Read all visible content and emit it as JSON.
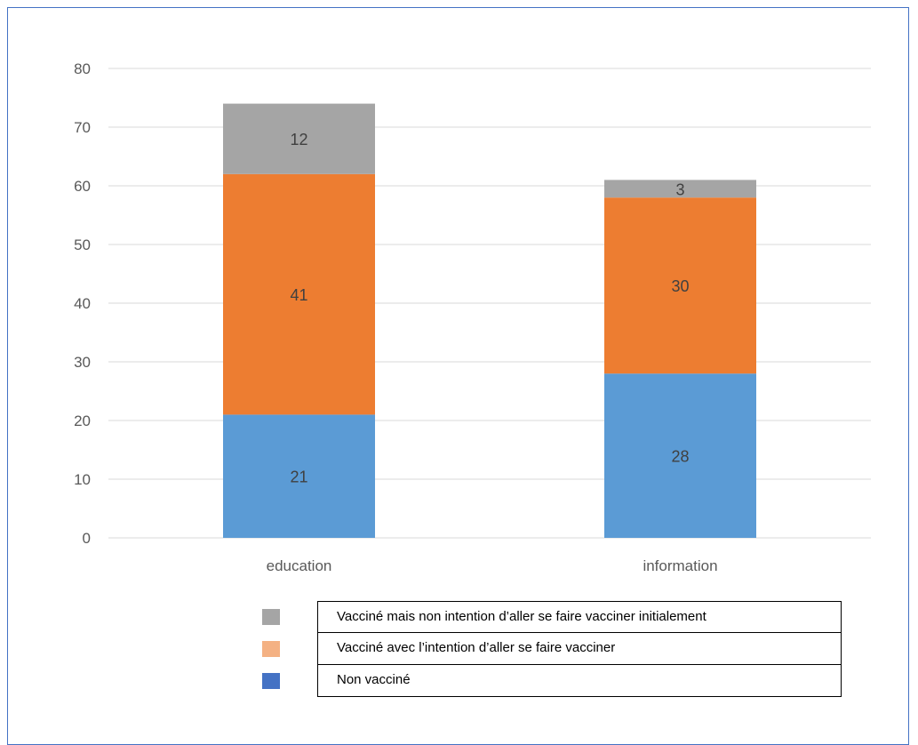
{
  "chart_data": {
    "type": "bar",
    "stacked": true,
    "categories": [
      "education",
      "information"
    ],
    "series": [
      {
        "name": "Non vacciné",
        "values": [
          21,
          28
        ],
        "color": "#5b9bd5"
      },
      {
        "name": "Vacciné avec l’intention d’aller se faire vacciner",
        "values": [
          41,
          30
        ],
        "color": "#ed7d31"
      },
      {
        "name": "Vacciné mais non intention d’aller se faire vacciner initialement",
        "values": [
          12,
          3
        ],
        "color": "#a5a5a5"
      }
    ],
    "ylim": [
      0,
      80
    ],
    "yticks": [
      "0",
      "10",
      "20",
      "30",
      "40",
      "50",
      "60",
      "70",
      "80"
    ],
    "grid": true,
    "legend_position": "bottom",
    "title": "",
    "xlabel": "",
    "ylabel": ""
  },
  "legend": [
    {
      "label": "Vacciné mais non intention d’aller se faire vacciner initialement",
      "color": "#a5a5a5"
    },
    {
      "label": "Vacciné avec l’intention d’aller se faire vacciner",
      "color": "#f4b183"
    },
    {
      "label": "Non vacciné",
      "color": "#4472c4"
    }
  ]
}
